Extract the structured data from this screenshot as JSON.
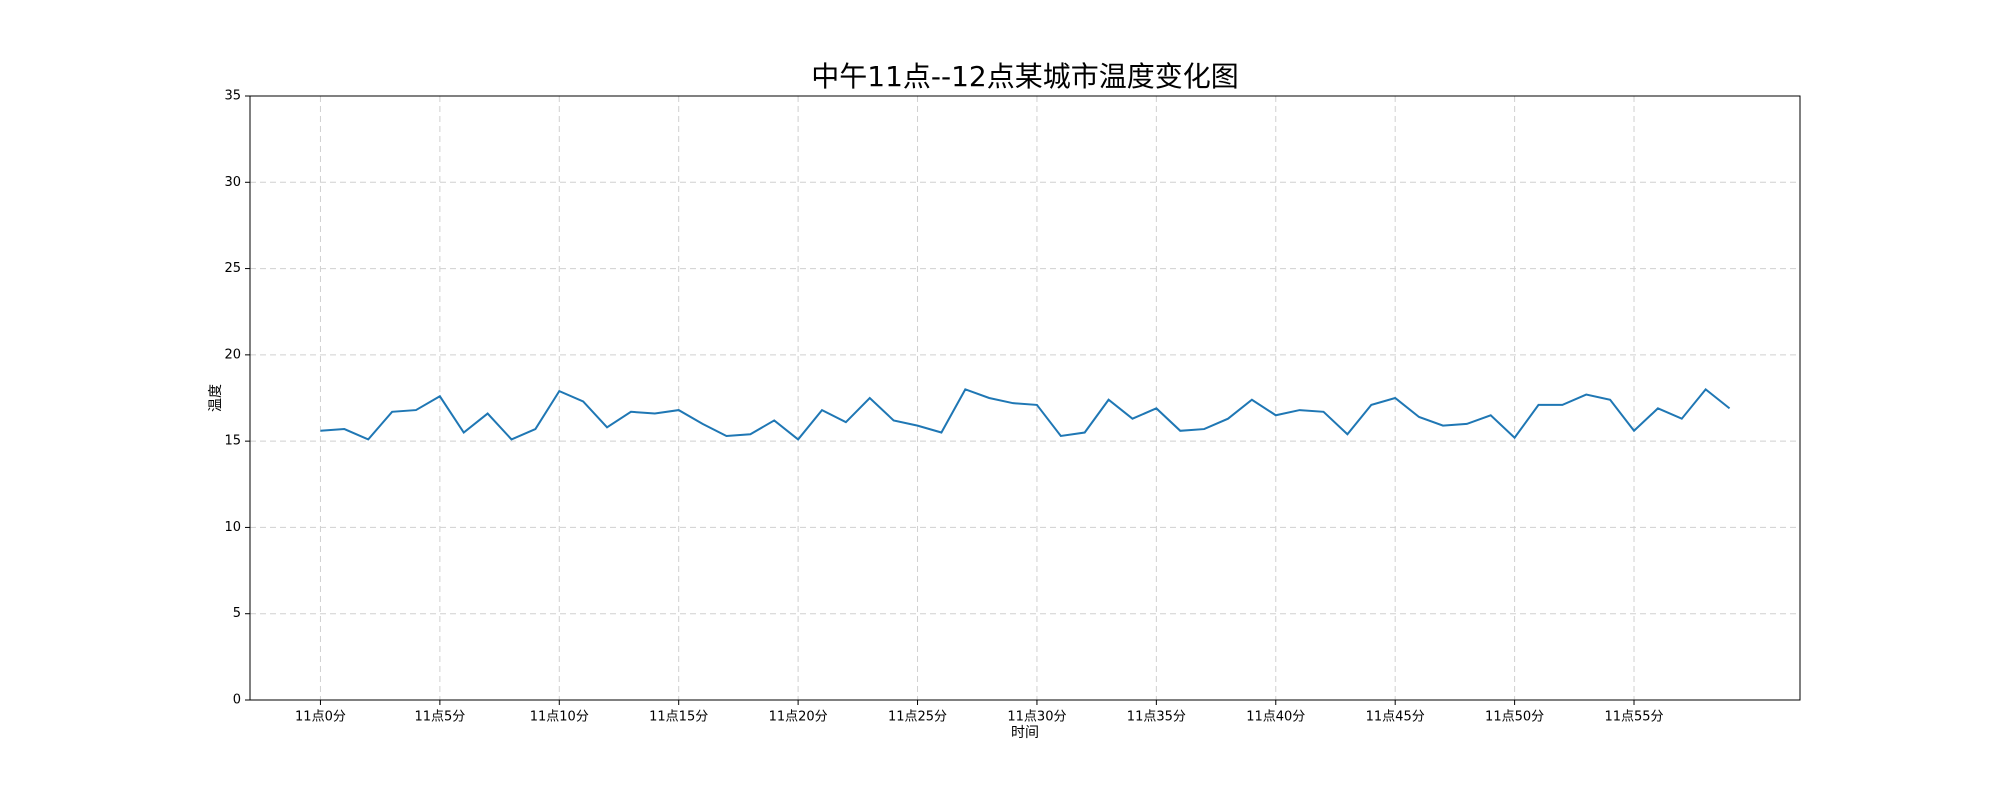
{
  "chart_data": {
    "type": "line",
    "title": "中午11点--12点某城市温度变化图",
    "x_label": "时间",
    "y_label": "温度",
    "x": [
      0,
      1,
      2,
      3,
      4,
      5,
      6,
      7,
      8,
      9,
      10,
      11,
      12,
      13,
      14,
      15,
      16,
      17,
      18,
      19,
      20,
      21,
      22,
      23,
      24,
      25,
      26,
      27,
      28,
      29,
      30,
      31,
      32,
      33,
      34,
      35,
      36,
      37,
      38,
      39,
      40,
      41,
      42,
      43,
      44,
      45,
      46,
      47,
      48,
      49,
      50,
      51,
      52,
      53,
      54,
      55,
      56,
      57,
      58,
      59
    ],
    "series": [
      {
        "name": "温度",
        "color": "#1f77b4",
        "values": [
          15.6,
          15.7,
          15.1,
          16.7,
          16.8,
          17.6,
          15.5,
          16.6,
          15.1,
          15.7,
          17.9,
          17.3,
          15.8,
          16.7,
          16.6,
          16.8,
          16.0,
          15.3,
          15.4,
          16.2,
          15.1,
          16.8,
          16.1,
          17.5,
          16.2,
          15.9,
          15.5,
          18.0,
          17.5,
          17.2,
          17.1,
          15.3,
          15.5,
          17.4,
          16.3,
          16.9,
          15.6,
          15.7,
          16.3,
          17.4,
          16.5,
          16.8,
          16.7,
          15.4,
          17.1,
          17.5,
          16.4,
          15.9,
          16.0,
          16.5,
          15.2,
          17.1,
          17.1,
          17.7,
          17.4,
          15.6,
          16.9,
          16.3,
          18.0,
          16.9
        ]
      }
    ],
    "xlim": [
      -2.95,
      61.95
    ],
    "xticks": [
      {
        "value": 0,
        "label": "11点0分"
      },
      {
        "value": 5,
        "label": "11点5分"
      },
      {
        "value": 10,
        "label": "11点10分"
      },
      {
        "value": 15,
        "label": "11点15分"
      },
      {
        "value": 20,
        "label": "11点20分"
      },
      {
        "value": 25,
        "label": "11点25分"
      },
      {
        "value": 30,
        "label": "11点30分"
      },
      {
        "value": 35,
        "label": "11点35分"
      },
      {
        "value": 40,
        "label": "11点40分"
      },
      {
        "value": 45,
        "label": "11点45分"
      },
      {
        "value": 50,
        "label": "11点50分"
      },
      {
        "value": 55,
        "label": "11点55分"
      }
    ],
    "ylim": [
      0,
      35
    ],
    "yticks": [
      0,
      5,
      10,
      15,
      20,
      25,
      30,
      35
    ],
    "grid": true
  }
}
